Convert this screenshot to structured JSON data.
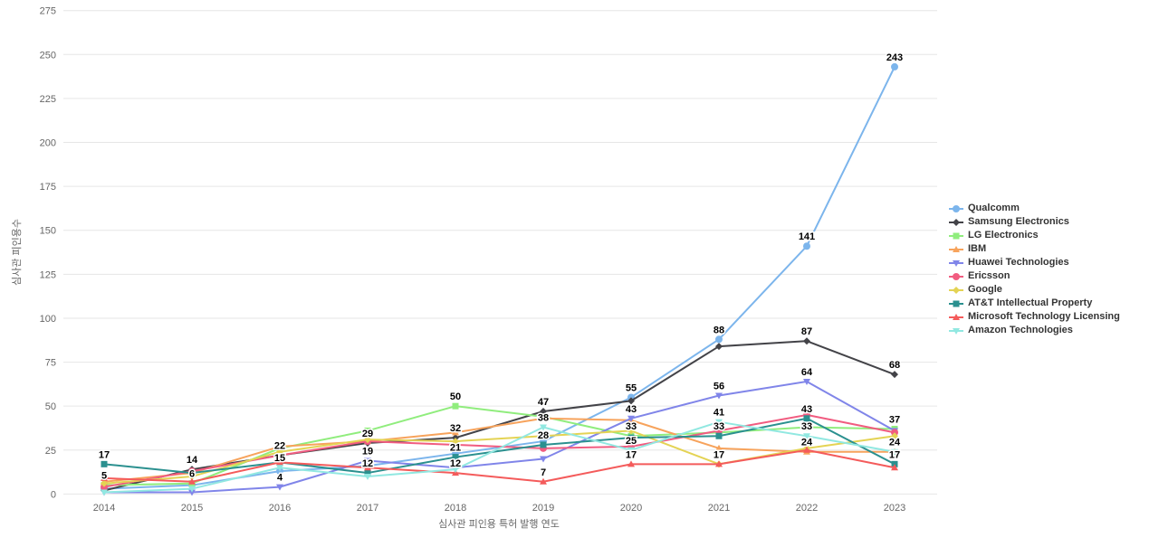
{
  "page": {
    "background": "#ffffff",
    "grid_color": "#e6e6e6",
    "tick_label_color": "#666666",
    "axis_title_color": "#666666",
    "legend_text_color": "#333333",
    "data_label_color": "#000000"
  },
  "chart_data": {
    "type": "line",
    "title": "",
    "xlabel": "심사관 피인용 특허 발행 연도",
    "ylabel": "심사관 피인용수",
    "x": [
      2014,
      2015,
      2016,
      2017,
      2018,
      2019,
      2020,
      2021,
      2022,
      2023
    ],
    "ylim": [
      0,
      275
    ],
    "ytick_step": 25,
    "yticks": [
      0,
      25,
      50,
      75,
      100,
      125,
      150,
      175,
      200,
      225,
      250,
      275
    ],
    "grid": "horizontal",
    "legend_position": "right",
    "series": [
      {
        "name": "Qualcomm",
        "color": "#7cb5ec",
        "marker": "circle",
        "values": [
          3,
          5,
          13,
          16,
          23,
          30,
          55,
          88,
          141,
          243
        ],
        "labeled_years": [
          2020,
          2021,
          2022,
          2023
        ]
      },
      {
        "name": "Samsung Electronics",
        "color": "#434348",
        "marker": "diamond",
        "values": [
          2,
          14,
          22,
          29,
          32,
          47,
          53,
          84,
          87,
          68
        ],
        "labeled_years": [
          2015,
          2016,
          2017,
          2018,
          2019,
          2022,
          2023
        ]
      },
      {
        "name": "LG Electronics",
        "color": "#90ed7d",
        "marker": "square",
        "values": [
          5,
          6,
          26,
          36,
          50,
          44,
          33,
          35,
          38,
          37
        ],
        "labeled_years": [
          2014,
          2015,
          2018,
          2020,
          2023
        ]
      },
      {
        "name": "IBM",
        "color": "#f7a35c",
        "marker": "triangle",
        "values": [
          7,
          12,
          27,
          30,
          35,
          43,
          42,
          26,
          24,
          24
        ],
        "labeled_years": [
          2022
        ]
      },
      {
        "name": "Huawei Technologies",
        "color": "#8085e9",
        "marker": "triangle-down",
        "values": [
          1,
          1,
          4,
          19,
          15,
          20,
          43,
          56,
          64,
          36
        ],
        "labeled_years": [
          2016,
          2017,
          2020,
          2021,
          2022
        ]
      },
      {
        "name": "Ericsson",
        "color": "#f15c80",
        "marker": "circle",
        "values": [
          4,
          13,
          22,
          30,
          28,
          26,
          27,
          36,
          45,
          35
        ],
        "labeled_years": []
      },
      {
        "name": "Google",
        "color": "#e4d354",
        "marker": "diamond",
        "values": [
          6,
          10,
          24,
          31,
          30,
          33,
          36,
          17,
          26,
          33
        ],
        "labeled_years": []
      },
      {
        "name": "AT&T Intellectual Property",
        "color": "#2b908f",
        "marker": "square",
        "values": [
          17,
          12,
          18,
          12,
          21,
          28,
          32,
          33,
          43,
          17
        ],
        "labeled_years": [
          2014,
          2017,
          2018,
          2019,
          2021,
          2022,
          2023
        ]
      },
      {
        "name": "Microsoft Technology Licensing",
        "color": "#f45b5b",
        "marker": "triangle",
        "values": [
          9,
          7,
          18,
          15,
          12,
          7,
          17,
          17,
          25,
          15
        ],
        "labeled_years": [
          2018,
          2019,
          2020,
          2021
        ]
      },
      {
        "name": "Amazon Technologies",
        "color": "#91e8e1",
        "marker": "triangle-down",
        "values": [
          1,
          3,
          15,
          10,
          14,
          38,
          25,
          41,
          33,
          24
        ],
        "labeled_years": [
          2016,
          2019,
          2020,
          2021,
          2022,
          2023
        ]
      }
    ]
  }
}
